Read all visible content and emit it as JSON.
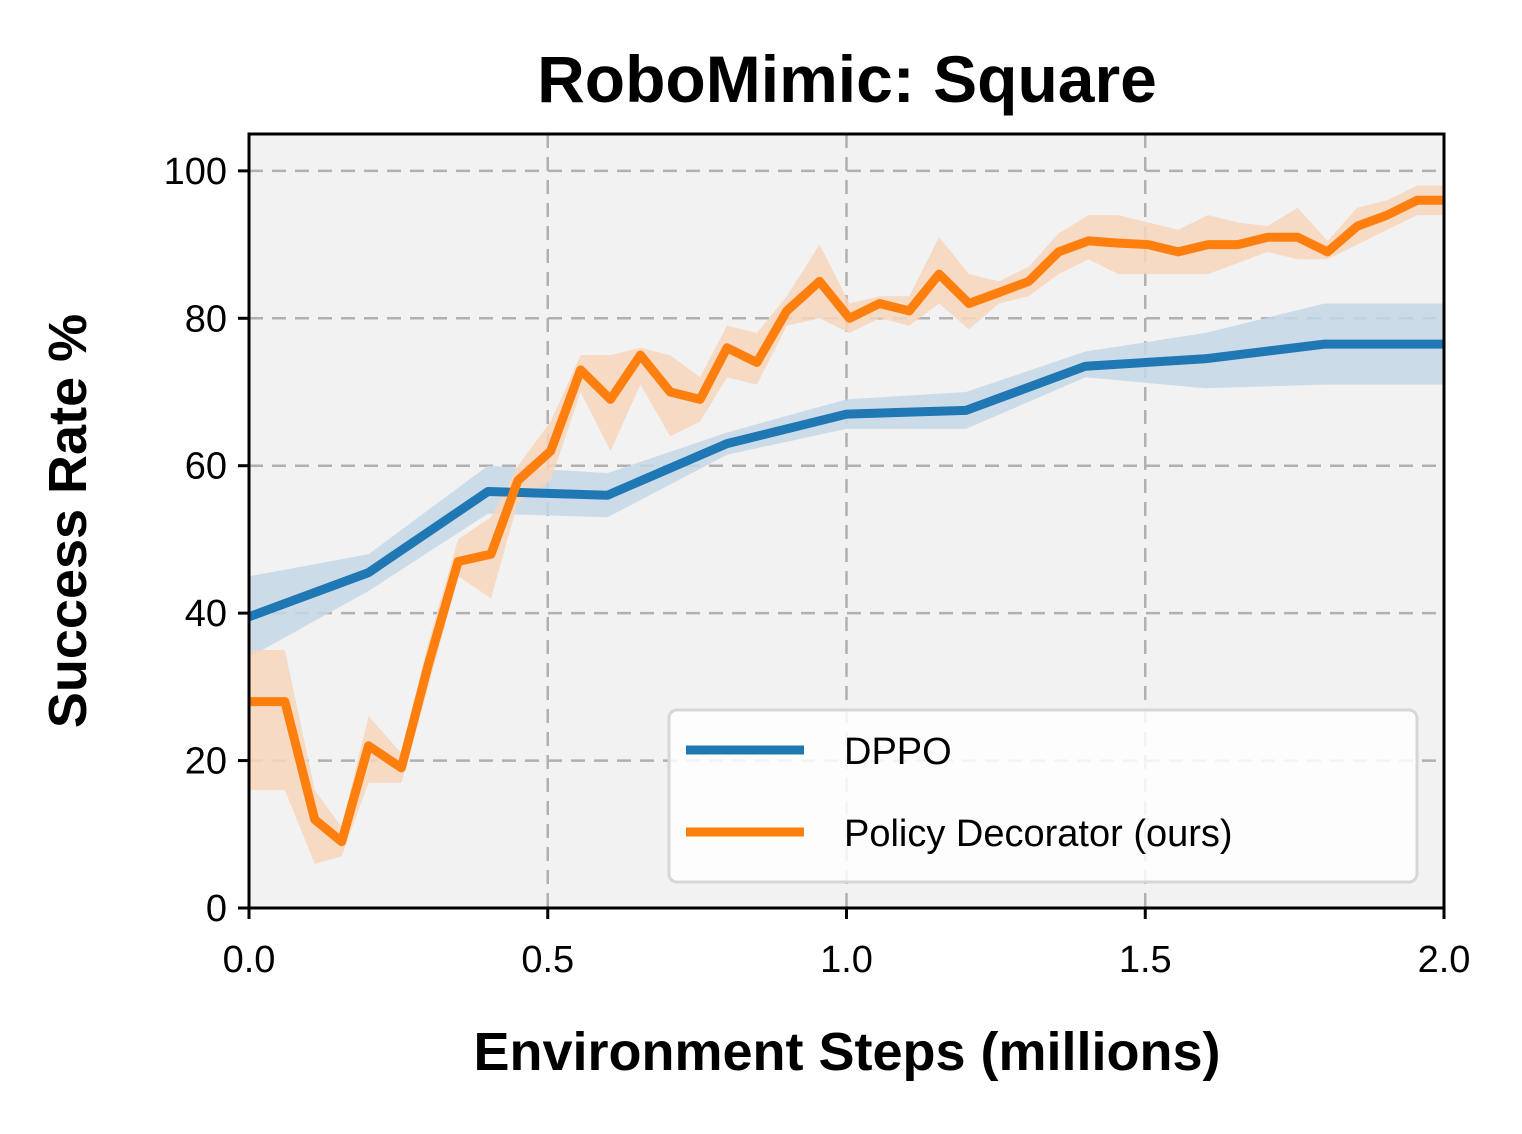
{
  "chart_data": {
    "type": "line",
    "title": "RoboMimic: Square",
    "xlabel": "Environment Steps (millions)",
    "ylabel": "Success Rate %",
    "xlim": [
      0,
      2.0
    ],
    "ylim": [
      0,
      105
    ],
    "xticks": [
      0.0,
      0.5,
      1.0,
      1.5,
      2.0
    ],
    "xtick_labels": [
      "0.0",
      "0.5",
      "1.0",
      "1.5",
      "2.0"
    ],
    "yticks": [
      0,
      20,
      40,
      60,
      80,
      100
    ],
    "ytick_labels": [
      "0",
      "20",
      "40",
      "60",
      "80",
      "100"
    ],
    "grid": true,
    "legend_position": "lower-right",
    "plot_background": "#f2f2f2",
    "series": [
      {
        "name": "DPPO",
        "color": "#1f77b4",
        "band_color": "#c5d7e6",
        "x": [
          0.0,
          0.2,
          0.4,
          0.6,
          0.8,
          1.0,
          1.2,
          1.4,
          1.6,
          1.8,
          2.0
        ],
        "y": [
          39.5,
          45.5,
          56.5,
          56.0,
          63.0,
          67.0,
          67.5,
          73.5,
          74.5,
          76.5,
          76.5
        ],
        "lower": [
          34.0,
          43.0,
          53.5,
          53.0,
          61.5,
          65.0,
          65.0,
          72.0,
          70.5,
          71.0,
          71.0
        ],
        "upper": [
          45.0,
          48.0,
          60.0,
          59.0,
          64.5,
          69.0,
          70.0,
          75.5,
          78.0,
          82.0,
          82.0
        ]
      },
      {
        "name": "Policy Decorator (ours)",
        "color": "#ff7f0e",
        "band_color": "#f7d6bc",
        "x": [
          0.0,
          0.06,
          0.11,
          0.155,
          0.2,
          0.255,
          0.3,
          0.35,
          0.405,
          0.45,
          0.505,
          0.555,
          0.605,
          0.655,
          0.705,
          0.755,
          0.8,
          0.85,
          0.9,
          0.955,
          1.005,
          1.055,
          1.105,
          1.155,
          1.205,
          1.255,
          1.305,
          1.355,
          1.405,
          1.455,
          1.505,
          1.555,
          1.605,
          1.655,
          1.705,
          1.755,
          1.805,
          1.855,
          1.905,
          1.955,
          2.0
        ],
        "y": [
          28,
          28,
          12,
          9,
          22,
          19,
          33,
          47,
          48,
          58,
          62,
          73,
          69,
          75,
          70,
          69,
          76,
          74,
          81,
          85,
          80,
          82,
          81,
          86,
          82,
          83.5,
          85,
          89,
          90.5,
          90.2,
          90,
          89,
          90,
          90,
          91,
          91,
          89,
          92.5,
          94,
          96,
          96
        ],
        "lower": [
          16,
          16,
          6,
          7,
          17,
          17,
          30,
          45,
          42,
          55,
          58,
          70,
          62,
          71,
          64,
          66,
          72,
          71,
          79,
          80,
          78,
          80,
          79,
          82,
          78.5,
          82,
          83,
          86,
          88,
          86,
          86,
          86,
          86,
          87.5,
          89,
          88,
          88,
          90,
          92,
          94,
          94
        ],
        "upper": [
          35,
          35,
          16,
          11,
          26,
          21,
          36,
          50,
          53,
          60,
          66,
          75,
          75,
          76,
          75,
          72,
          79,
          78,
          83,
          90,
          82,
          83,
          83,
          91,
          86,
          85,
          87,
          91.5,
          94,
          94,
          93,
          92,
          94,
          93,
          92.5,
          95,
          90.5,
          95,
          96,
          98,
          98
        ]
      }
    ]
  }
}
